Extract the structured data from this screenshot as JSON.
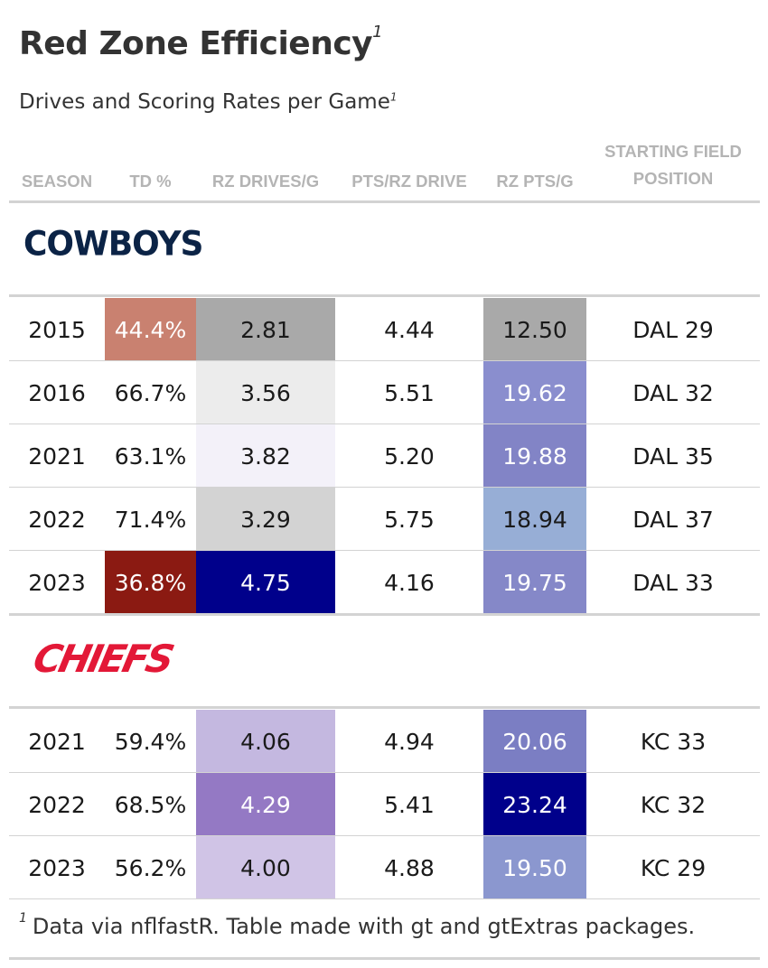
{
  "title": "Red Zone Efficiency",
  "title_note": "1",
  "subtitle": "Drives and Scoring Rates per Game",
  "subtitle_note": "1",
  "columns": {
    "season": "SEASON",
    "td_pct": "TD %",
    "rz_drives": "RZ DRIVES/G",
    "pts_per_drive": "PTS/RZ DRIVE",
    "rz_pts": "RZ PTS/G",
    "start_field_line1": "STARTING FIELD",
    "start_field_line2": "POSITION"
  },
  "groups": [
    {
      "team": "COWBOYS",
      "logo_color": "#0b2346",
      "rows": [
        {
          "season": "2015",
          "td_pct": "44.4%",
          "td_bg": "#c98170",
          "td_fg": "#ffffff",
          "rz_drives": "2.81",
          "drives_bg": "#a9a9a9",
          "drives_fg": "#1a1a1a",
          "pts_per_drive": "4.44",
          "rz_pts": "12.50",
          "pts_bg": "#a9a9a9",
          "pts_fg": "#1a1a1a",
          "start": "DAL 29"
        },
        {
          "season": "2016",
          "td_pct": "66.7%",
          "td_bg": "#ffffff",
          "td_fg": "#1a1a1a",
          "rz_drives": "3.56",
          "drives_bg": "#ececec",
          "drives_fg": "#1a1a1a",
          "pts_per_drive": "5.51",
          "rz_pts": "19.62",
          "pts_bg": "#8a8ece",
          "pts_fg": "#ffffff",
          "start": "DAL 32"
        },
        {
          "season": "2021",
          "td_pct": "63.1%",
          "td_bg": "#ffffff",
          "td_fg": "#1a1a1a",
          "rz_drives": "3.82",
          "drives_bg": "#f3f1f9",
          "drives_fg": "#1a1a1a",
          "pts_per_drive": "5.20",
          "rz_pts": "19.88",
          "pts_bg": "#8284c6",
          "pts_fg": "#ffffff",
          "start": "DAL 35"
        },
        {
          "season": "2022",
          "td_pct": "71.4%",
          "td_bg": "#ffffff",
          "td_fg": "#1a1a1a",
          "rz_drives": "3.29",
          "drives_bg": "#d3d3d3",
          "drives_fg": "#1a1a1a",
          "pts_per_drive": "5.75",
          "rz_pts": "18.94",
          "pts_bg": "#97aed6",
          "pts_fg": "#1a1a1a",
          "start": "DAL 37"
        },
        {
          "season": "2023",
          "td_pct": "36.8%",
          "td_bg": "#8b1a12",
          "td_fg": "#ffffff",
          "rz_drives": "4.75",
          "drives_bg": "#00008b",
          "drives_fg": "#ffffff",
          "pts_per_drive": "4.16",
          "rz_pts": "19.75",
          "pts_bg": "#8588c8",
          "pts_fg": "#ffffff",
          "start": "DAL 33"
        }
      ]
    },
    {
      "team": "CHIEFS",
      "logo_color": "#e31837",
      "rows": [
        {
          "season": "2021",
          "td_pct": "59.4%",
          "td_bg": "#ffffff",
          "td_fg": "#1a1a1a",
          "rz_drives": "4.06",
          "drives_bg": "#c4b8e0",
          "drives_fg": "#1a1a1a",
          "pts_per_drive": "4.94",
          "rz_pts": "20.06",
          "pts_bg": "#7b7ec3",
          "pts_fg": "#ffffff",
          "start": "KC 33"
        },
        {
          "season": "2022",
          "td_pct": "68.5%",
          "td_bg": "#ffffff",
          "td_fg": "#1a1a1a",
          "rz_drives": "4.29",
          "drives_bg": "#9479c4",
          "drives_fg": "#ffffff",
          "pts_per_drive": "5.41",
          "rz_pts": "23.24",
          "pts_bg": "#00008b",
          "pts_fg": "#ffffff",
          "start": "KC 32"
        },
        {
          "season": "2023",
          "td_pct": "56.2%",
          "td_bg": "#ffffff",
          "td_fg": "#1a1a1a",
          "rz_drives": "4.00",
          "drives_bg": "#d0c4e6",
          "drives_fg": "#1a1a1a",
          "pts_per_drive": "4.88",
          "rz_pts": "19.50",
          "pts_bg": "#8b97cf",
          "pts_fg": "#ffffff",
          "start": "KC 29"
        }
      ]
    }
  ],
  "footnote_mark": "1",
  "footnote": "Data via nflfastR. Table made with gt and gtExtras packages."
}
